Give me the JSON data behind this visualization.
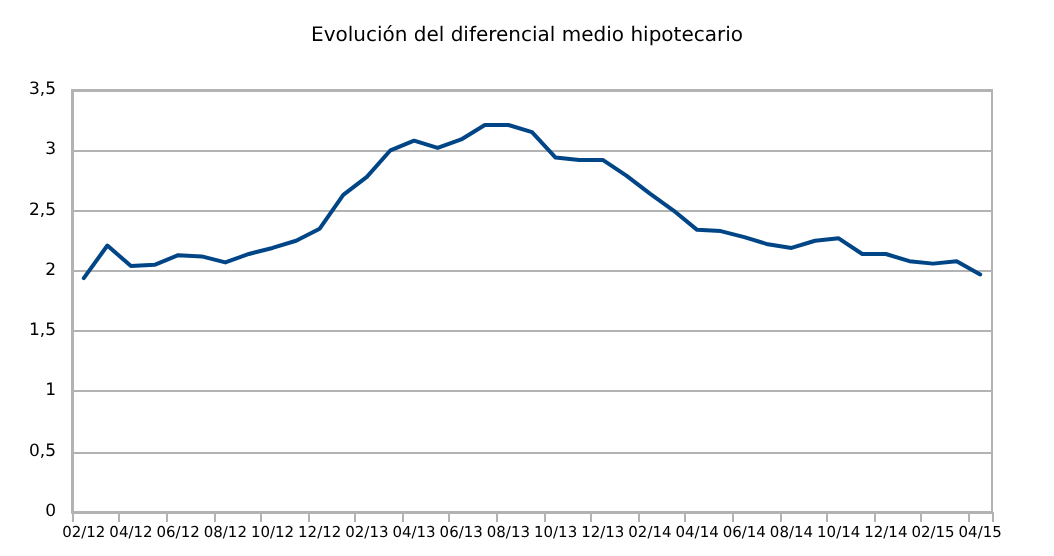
{
  "chart_data": {
    "type": "line",
    "title": "Evolución del diferencial medio hipotecario",
    "categories": [
      "02/12",
      null,
      "04/12",
      null,
      "06/12",
      null,
      "08/12",
      null,
      "10/12",
      null,
      "12/12",
      null,
      "02/13",
      null,
      "04/13",
      null,
      "06/13",
      null,
      "08/13",
      null,
      "10/13",
      null,
      "12/13",
      null,
      "02/14",
      null,
      "04/14",
      null,
      "06/14",
      null,
      "08/14",
      null,
      "10/14",
      null,
      "12/14",
      null,
      "02/15",
      null,
      "04/15"
    ],
    "series": [
      {
        "color": "#004586",
        "values": [
          1.94,
          2.21,
          2.04,
          2.05,
          2.13,
          2.12,
          2.07,
          2.14,
          2.19,
          2.25,
          2.35,
          2.63,
          2.78,
          3.0,
          3.08,
          3.02,
          3.09,
          3.21,
          3.21,
          3.15,
          2.94,
          2.92,
          2.92,
          2.79,
          2.64,
          2.5,
          2.34,
          2.33,
          2.28,
          2.22,
          2.19,
          2.25,
          2.27,
          2.14,
          2.14,
          2.08,
          2.06,
          2.08,
          1.97
        ]
      }
    ],
    "ylim": [
      0,
      3.5
    ],
    "yticks": [
      {
        "value": 0,
        "label": "0"
      },
      {
        "value": 0.5,
        "label": "0,5"
      },
      {
        "value": 1,
        "label": "1"
      },
      {
        "value": 1.5,
        "label": "1,5"
      },
      {
        "value": 2,
        "label": "2"
      },
      {
        "value": 2.5,
        "label": "2,5"
      },
      {
        "value": 3,
        "label": "3"
      },
      {
        "value": 3.5,
        "label": "3,5"
      }
    ],
    "grid": "y",
    "marker": "none",
    "line_style": "solid"
  }
}
